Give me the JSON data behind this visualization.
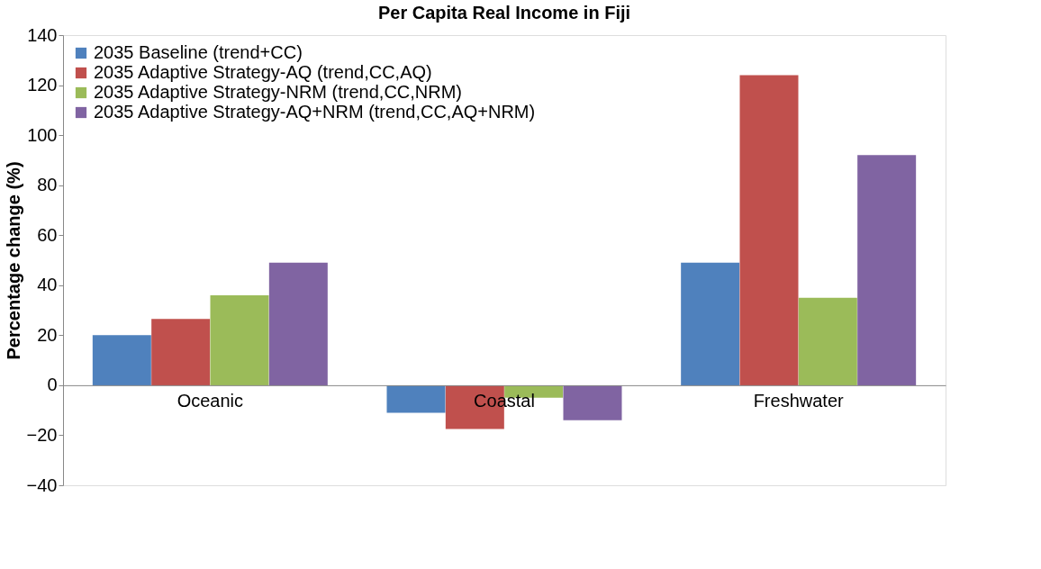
{
  "chart_data": {
    "type": "bar",
    "title": "Per Capita Real Income in Fiji",
    "ylabel": "Percentage change (%)",
    "categories": [
      "Oceanic",
      "Coastal",
      "Freshwater"
    ],
    "series": [
      {
        "name": "2035 Baseline (trend+CC)",
        "color": "#4f81bd",
        "values": [
          20,
          -11,
          49
        ]
      },
      {
        "name": "2035 Adaptive Strategy-AQ (trend,CC,AQ)",
        "color": "#c0504d",
        "values": [
          26.5,
          -17.5,
          124
        ]
      },
      {
        "name": "2035 Adaptive Strategy-NRM (trend,CC,NRM)",
        "color": "#9bbb59",
        "values": [
          36,
          -5,
          35
        ]
      },
      {
        "name": "2035 Adaptive Strategy-AQ+NRM (trend,CC,AQ+NRM)",
        "color": "#8064a2",
        "values": [
          49,
          -14,
          92
        ]
      }
    ],
    "ylim": [
      -40,
      140
    ],
    "yticks": [
      -40,
      -20,
      0,
      20,
      40,
      60,
      80,
      100,
      120,
      140
    ],
    "grid": false,
    "legend": "top left"
  }
}
